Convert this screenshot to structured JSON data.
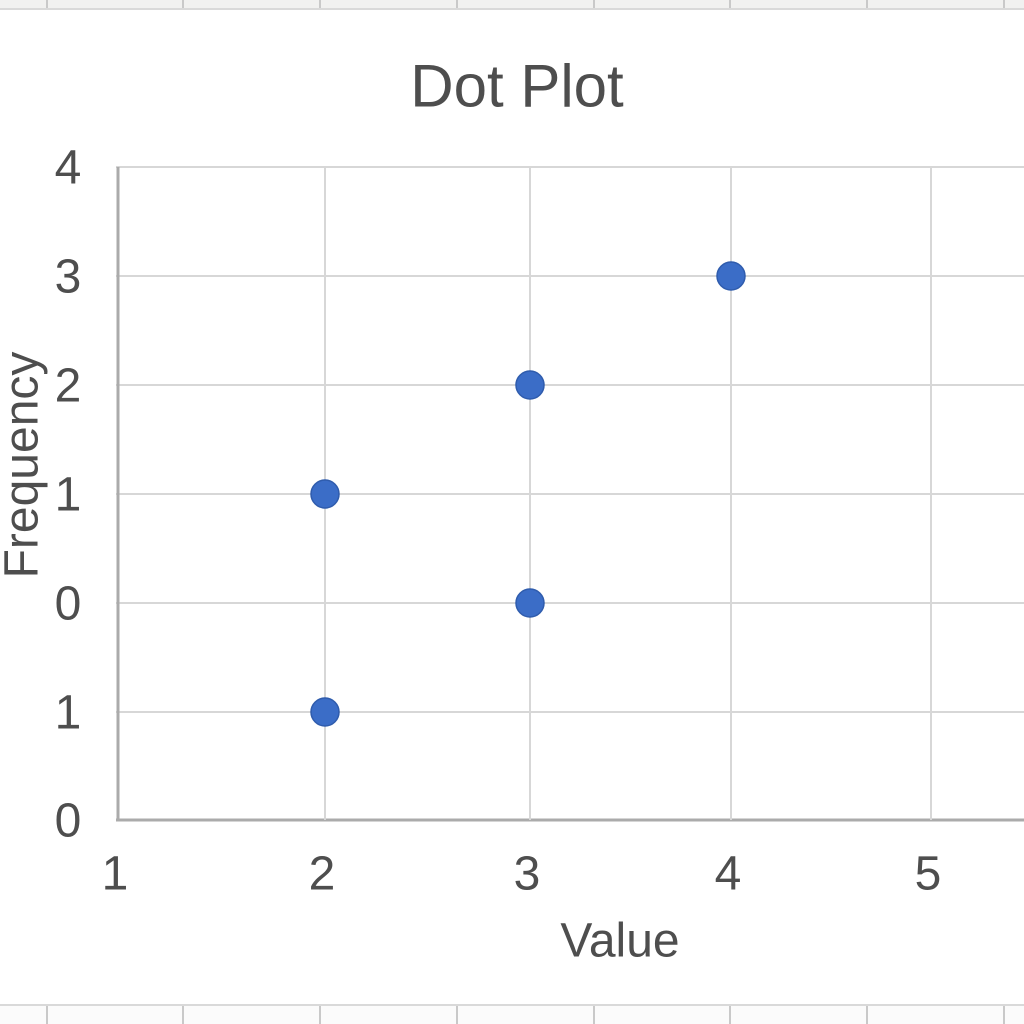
{
  "chart_data": {
    "type": "scatter",
    "title": "Dot Plot",
    "xlabel": "Value",
    "ylabel": "Frequency",
    "x_ticks": [
      "1",
      "2",
      "3",
      "4",
      "5"
    ],
    "y_ticks_top_to_bottom": [
      "4",
      "3",
      "2",
      "1",
      "0",
      "1",
      "0"
    ],
    "points": [
      {
        "x": 2,
        "y_row_from_bottom": 3,
        "y_label_at_row": "1"
      },
      {
        "x": 3,
        "y_row_from_bottom": 4,
        "y_label_at_row": "2"
      },
      {
        "x": 4,
        "y_row_from_bottom": 5,
        "y_label_at_row": "3"
      },
      {
        "x": 3,
        "y_row_from_bottom": 2,
        "y_label_at_row": "0"
      },
      {
        "x": 2,
        "y_row_from_bottom": 1,
        "y_label_at_row": "1"
      }
    ],
    "legend": "none",
    "grid": "on",
    "colors": {
      "marker": "#3b6dc7",
      "marker_edge": "#2f5cad",
      "gridline": "#d7d7d7",
      "axis_line": "#ababab",
      "text": "#4e4e4e"
    }
  },
  "spreadsheet": {
    "top_row_fill": "#f1f1f0",
    "bottom_row_fill": "#fbfbfb",
    "cell_border": "#c9c9c9",
    "row_border": "#d9d9d9"
  }
}
